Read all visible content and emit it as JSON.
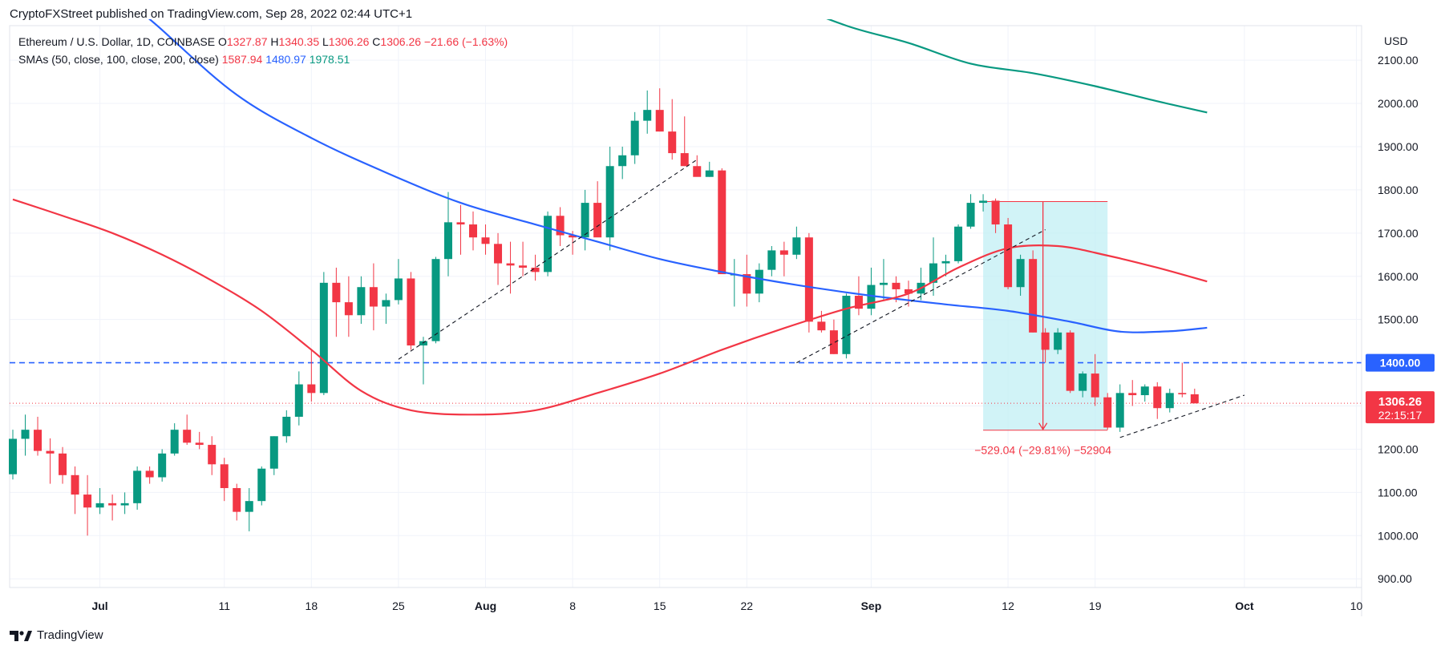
{
  "header": {
    "published": "CryptoFXStreet published on TradingView.com, Sep 28, 2022 02:44 UTC+1",
    "symbol": "Ethereum / U.S. Dollar, 1D, COINBASE",
    "ohlc": {
      "o_label": "O",
      "o": "1327.87",
      "h_label": "H",
      "h": "1340.35",
      "l_label": "L",
      "l": "1306.26",
      "c_label": "C",
      "c": "1306.26",
      "change": "−21.66 (−1.63%)"
    },
    "sma_label": "SMAs (50, close, 100, close, 200, close)",
    "sma50": "1587.94",
    "sma100": "1480.97",
    "sma200": "1978.51"
  },
  "branding": {
    "name": "TradingView"
  },
  "colors": {
    "up": "#089981",
    "down": "#f23645",
    "sma50": "#f23645",
    "sma100": "#2962ff",
    "sma200": "#089981",
    "hline": "#2962ff",
    "measure_fill": "#bdeef4"
  },
  "chart_data": {
    "type": "candlestick",
    "currency": "USD",
    "ylim": [
      880,
      2180
    ],
    "y_ticks": [
      "2100.00",
      "2000.00",
      "1900.00",
      "1800.00",
      "1700.00",
      "1600.00",
      "1500.00",
      "1400.00",
      "1300.00",
      "1200.00",
      "1100.00",
      "1000.00",
      "900.00"
    ],
    "x_ticks": [
      {
        "label": "Jul",
        "date": "2022-07-01",
        "bold": true
      },
      {
        "label": "11",
        "date": "2022-07-11",
        "bold": false
      },
      {
        "label": "18",
        "date": "2022-07-18",
        "bold": false
      },
      {
        "label": "25",
        "date": "2022-07-25",
        "bold": false
      },
      {
        "label": "Aug",
        "date": "2022-08-01",
        "bold": true
      },
      {
        "label": "8",
        "date": "2022-08-08",
        "bold": false
      },
      {
        "label": "15",
        "date": "2022-08-15",
        "bold": false
      },
      {
        "label": "22",
        "date": "2022-08-22",
        "bold": false
      },
      {
        "label": "Sep",
        "date": "2022-09-01",
        "bold": true
      },
      {
        "label": "12",
        "date": "2022-09-12",
        "bold": false
      },
      {
        "label": "19",
        "date": "2022-09-19",
        "bold": false
      },
      {
        "label": "Oct",
        "date": "2022-10-01",
        "bold": true
      },
      {
        "label": "10",
        "date": "2022-10-10",
        "bold": false
      }
    ],
    "x_range": [
      "2022-06-24",
      "2022-10-11"
    ],
    "candles": {
      "start_date": "2022-06-24",
      "fields": [
        "open",
        "high",
        "low",
        "close"
      ],
      "values": [
        [
          1142,
          1245,
          1130,
          1224
        ],
        [
          1224,
          1280,
          1185,
          1245
        ],
        [
          1245,
          1275,
          1185,
          1196
        ],
        [
          1196,
          1225,
          1120,
          1190
        ],
        [
          1190,
          1205,
          1120,
          1140
        ],
        [
          1140,
          1160,
          1050,
          1095
        ],
        [
          1095,
          1140,
          1000,
          1065
        ],
        [
          1065,
          1110,
          1050,
          1075
        ],
        [
          1075,
          1095,
          1035,
          1070
        ],
        [
          1070,
          1100,
          1050,
          1075
        ],
        [
          1075,
          1160,
          1060,
          1150
        ],
        [
          1150,
          1160,
          1120,
          1135
        ],
        [
          1135,
          1200,
          1125,
          1190
        ],
        [
          1190,
          1260,
          1185,
          1245
        ],
        [
          1245,
          1280,
          1210,
          1215
        ],
        [
          1215,
          1240,
          1200,
          1210
        ],
        [
          1210,
          1230,
          1140,
          1165
        ],
        [
          1165,
          1180,
          1080,
          1110
        ],
        [
          1110,
          1120,
          1035,
          1055
        ],
        [
          1055,
          1110,
          1010,
          1080
        ],
        [
          1080,
          1160,
          1070,
          1155
        ],
        [
          1155,
          1230,
          1140,
          1230
        ],
        [
          1230,
          1290,
          1215,
          1275
        ],
        [
          1275,
          1380,
          1255,
          1350
        ],
        [
          1350,
          1430,
          1310,
          1330
        ],
        [
          1330,
          1610,
          1325,
          1585
        ],
        [
          1585,
          1620,
          1460,
          1540
        ],
        [
          1540,
          1600,
          1460,
          1510
        ],
        [
          1510,
          1600,
          1490,
          1575
        ],
        [
          1575,
          1630,
          1475,
          1530
        ],
        [
          1530,
          1560,
          1490,
          1545
        ],
        [
          1545,
          1640,
          1535,
          1595
        ],
        [
          1595,
          1610,
          1430,
          1440
        ],
        [
          1440,
          1460,
          1350,
          1450
        ],
        [
          1450,
          1645,
          1445,
          1640
        ],
        [
          1640,
          1795,
          1600,
          1725
        ],
        [
          1725,
          1765,
          1650,
          1720
        ],
        [
          1720,
          1750,
          1660,
          1690
        ],
        [
          1690,
          1720,
          1650,
          1675
        ],
        [
          1675,
          1700,
          1580,
          1630
        ],
        [
          1630,
          1680,
          1560,
          1625
        ],
        [
          1625,
          1680,
          1600,
          1620
        ],
        [
          1620,
          1650,
          1590,
          1610
        ],
        [
          1610,
          1750,
          1600,
          1740
        ],
        [
          1740,
          1760,
          1670,
          1695
        ],
        [
          1695,
          1705,
          1650,
          1690
        ],
        [
          1690,
          1800,
          1660,
          1770
        ],
        [
          1770,
          1820,
          1700,
          1690
        ],
        [
          1690,
          1900,
          1660,
          1855
        ],
        [
          1855,
          1900,
          1825,
          1880
        ],
        [
          1880,
          1980,
          1860,
          1960
        ],
        [
          1960,
          2030,
          1930,
          1985
        ],
        [
          1985,
          2035,
          1935,
          1935
        ],
        [
          1935,
          2010,
          1870,
          1885
        ],
        [
          1885,
          1970,
          1855,
          1855
        ],
        [
          1855,
          1880,
          1840,
          1830
        ],
        [
          1830,
          1865,
          1830,
          1845
        ],
        [
          1845,
          1850,
          1610,
          1605
        ],
        [
          1605,
          1640,
          1530,
          1605
        ],
        [
          1605,
          1650,
          1530,
          1560
        ],
        [
          1560,
          1630,
          1540,
          1615
        ],
        [
          1615,
          1670,
          1600,
          1660
        ],
        [
          1660,
          1680,
          1600,
          1650
        ],
        [
          1650,
          1715,
          1640,
          1690
        ],
        [
          1690,
          1700,
          1470,
          1495
        ],
        [
          1495,
          1520,
          1470,
          1475
        ],
        [
          1475,
          1500,
          1420,
          1420
        ],
        [
          1420,
          1560,
          1410,
          1555
        ],
        [
          1555,
          1600,
          1510,
          1525
        ],
        [
          1525,
          1620,
          1510,
          1580
        ],
        [
          1580,
          1640,
          1545,
          1585
        ],
        [
          1585,
          1600,
          1540,
          1570
        ],
        [
          1570,
          1590,
          1530,
          1560
        ],
        [
          1560,
          1620,
          1545,
          1585
        ],
        [
          1585,
          1690,
          1555,
          1630
        ],
        [
          1630,
          1650,
          1600,
          1635
        ],
        [
          1635,
          1720,
          1630,
          1715
        ],
        [
          1715,
          1790,
          1710,
          1770
        ],
        [
          1770,
          1790,
          1750,
          1775
        ],
        [
          1775,
          1780,
          1700,
          1720
        ],
        [
          1720,
          1735,
          1570,
          1575
        ],
        [
          1575,
          1650,
          1555,
          1640
        ],
        [
          1640,
          1660,
          1470,
          1470
        ],
        [
          1470,
          1480,
          1400,
          1430
        ],
        [
          1430,
          1480,
          1420,
          1470
        ],
        [
          1470,
          1475,
          1330,
          1335
        ],
        [
          1335,
          1380,
          1320,
          1375
        ],
        [
          1375,
          1420,
          1300,
          1320
        ],
        [
          1320,
          1330,
          1245,
          1250
        ],
        [
          1250,
          1350,
          1240,
          1330
        ],
        [
          1330,
          1360,
          1300,
          1325
        ],
        [
          1325,
          1350,
          1310,
          1345
        ],
        [
          1345,
          1355,
          1270,
          1295
        ],
        [
          1295,
          1340,
          1285,
          1330
        ],
        [
          1330,
          1400,
          1320,
          1327
        ],
        [
          1327,
          1340,
          1306,
          1306
        ]
      ]
    },
    "sma50": {
      "points": [
        [
          "2022-06-24",
          1778
        ],
        [
          "2022-06-28",
          1740
        ],
        [
          "2022-07-02",
          1700
        ],
        [
          "2022-07-06",
          1650
        ],
        [
          "2022-07-10",
          1590
        ],
        [
          "2022-07-14",
          1520
        ],
        [
          "2022-07-18",
          1430
        ],
        [
          "2022-07-22",
          1335
        ],
        [
          "2022-07-26",
          1290
        ],
        [
          "2022-07-31",
          1280
        ],
        [
          "2022-08-05",
          1290
        ],
        [
          "2022-08-10",
          1330
        ],
        [
          "2022-08-15",
          1375
        ],
        [
          "2022-08-20",
          1430
        ],
        [
          "2022-08-25",
          1480
        ],
        [
          "2022-08-30",
          1525
        ],
        [
          "2022-09-04",
          1560
        ],
        [
          "2022-09-08",
          1620
        ],
        [
          "2022-09-12",
          1665
        ],
        [
          "2022-09-16",
          1670
        ],
        [
          "2022-09-20",
          1648
        ],
        [
          "2022-09-24",
          1620
        ],
        [
          "2022-09-28",
          1588
        ]
      ]
    },
    "sma100": {
      "points": [
        [
          "2022-06-24",
          2590
        ],
        [
          "2022-06-30",
          2330
        ],
        [
          "2022-07-06",
          2170
        ],
        [
          "2022-07-12",
          2020
        ],
        [
          "2022-07-18",
          1920
        ],
        [
          "2022-07-24",
          1840
        ],
        [
          "2022-07-30",
          1770
        ],
        [
          "2022-08-05",
          1720
        ],
        [
          "2022-08-10",
          1680
        ],
        [
          "2022-08-15",
          1640
        ],
        [
          "2022-08-20",
          1610
        ],
        [
          "2022-08-26",
          1580
        ],
        [
          "2022-09-01",
          1555
        ],
        [
          "2022-09-07",
          1535
        ],
        [
          "2022-09-12",
          1520
        ],
        [
          "2022-09-17",
          1495
        ],
        [
          "2022-09-21",
          1472
        ],
        [
          "2022-09-25",
          1473
        ],
        [
          "2022-09-28",
          1481
        ]
      ]
    },
    "sma200": {
      "points": [
        [
          "2022-08-10",
          2540
        ],
        [
          "2022-08-15",
          2420
        ],
        [
          "2022-08-20",
          2328
        ],
        [
          "2022-08-25",
          2240
        ],
        [
          "2022-08-30",
          2180
        ],
        [
          "2022-09-04",
          2140
        ],
        [
          "2022-09-09",
          2092
        ],
        [
          "2022-09-14",
          2070
        ],
        [
          "2022-09-19",
          2040
        ],
        [
          "2022-09-24",
          2005
        ],
        [
          "2022-09-28",
          1979
        ]
      ]
    },
    "horizontal_line": {
      "price": 1400,
      "label": "1400.00"
    },
    "last_price": {
      "price": 1306.26,
      "label": "1306.26",
      "countdown": "22:15:17"
    },
    "trendlines": [
      {
        "from": [
          "2022-07-25",
          1408
        ],
        "to": [
          "2022-08-18",
          1870
        ]
      },
      {
        "from": [
          "2022-08-26",
          1400
        ],
        "to": [
          "2022-09-15",
          1708
        ]
      },
      {
        "from": [
          "2022-09-21",
          1227
        ],
        "to": [
          "2022-10-01",
          1325
        ]
      }
    ],
    "measure": {
      "from": [
        "2022-09-10",
        1773
      ],
      "to": [
        "2022-09-20",
        1244
      ],
      "label": "−529.04 (−29.81%) −52904"
    }
  }
}
